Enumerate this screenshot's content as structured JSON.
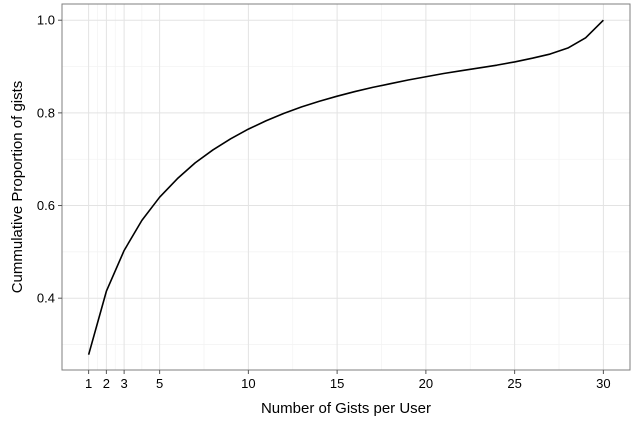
{
  "chart_data": {
    "type": "line",
    "title": "",
    "xlabel": "Number of Gists per User",
    "ylabel": "Cummulative Proportion of gists",
    "xlim": [
      -0.5,
      31.5
    ],
    "ylim": [
      0.245,
      1.035
    ],
    "x_ticks": [
      1,
      2,
      3,
      5,
      10,
      15,
      20,
      25,
      30
    ],
    "x_tick_labels": [
      "1",
      "2",
      "3",
      "5",
      "10",
      "15",
      "20",
      "25",
      "30"
    ],
    "y_ticks": [
      0.4,
      0.6,
      0.8,
      1.0
    ],
    "y_tick_labels": [
      "0.4",
      "0.6",
      "0.8",
      "1.0"
    ],
    "grid": true,
    "legend": "none",
    "series": [
      {
        "color": "#000000",
        "x": [
          1,
          2,
          3,
          4,
          5,
          6,
          7,
          8,
          9,
          10,
          11,
          12,
          13,
          14,
          15,
          16,
          17,
          18,
          19,
          20,
          21,
          22,
          23,
          24,
          25,
          26,
          27,
          28,
          29,
          30
        ],
        "y": [
          0.278,
          0.415,
          0.503,
          0.568,
          0.618,
          0.658,
          0.692,
          0.72,
          0.744,
          0.765,
          0.783,
          0.799,
          0.813,
          0.825,
          0.836,
          0.846,
          0.855,
          0.863,
          0.871,
          0.878,
          0.885,
          0.891,
          0.897,
          0.903,
          0.91,
          0.918,
          0.927,
          0.94,
          0.962,
          1.0
        ]
      }
    ]
  }
}
